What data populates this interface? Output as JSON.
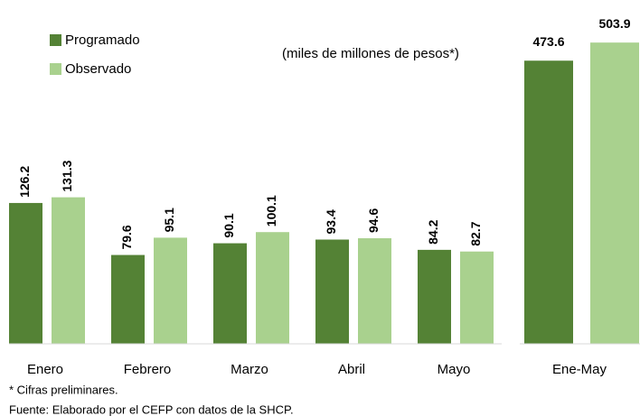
{
  "chart_data": [
    {
      "type": "bar",
      "subtitle": "(miles de millones de pesos*)",
      "categories": [
        "Enero",
        "Febrero",
        "Marzo",
        "Abril",
        "Mayo"
      ],
      "series": [
        {
          "name": "Programado",
          "color": "#548235",
          "values": [
            126.2,
            79.6,
            90.1,
            93.4,
            84.2
          ]
        },
        {
          "name": "Observado",
          "color": "#a9d18e",
          "values": [
            131.3,
            95.1,
            100.1,
            94.6,
            82.7
          ]
        }
      ],
      "ylim": [
        0,
        300
      ],
      "notes": [
        "* Cifras preliminares.",
        "Fuente: Elaborado por el CEFP con datos de la SHCP."
      ]
    },
    {
      "type": "bar",
      "categories": [
        "Ene-May"
      ],
      "series": [
        {
          "color": "#548235",
          "values": [
            473.6
          ]
        },
        {
          "color": "#a9d18e",
          "values": [
            503.9
          ]
        }
      ],
      "ylim": [
        0,
        560
      ]
    }
  ]
}
